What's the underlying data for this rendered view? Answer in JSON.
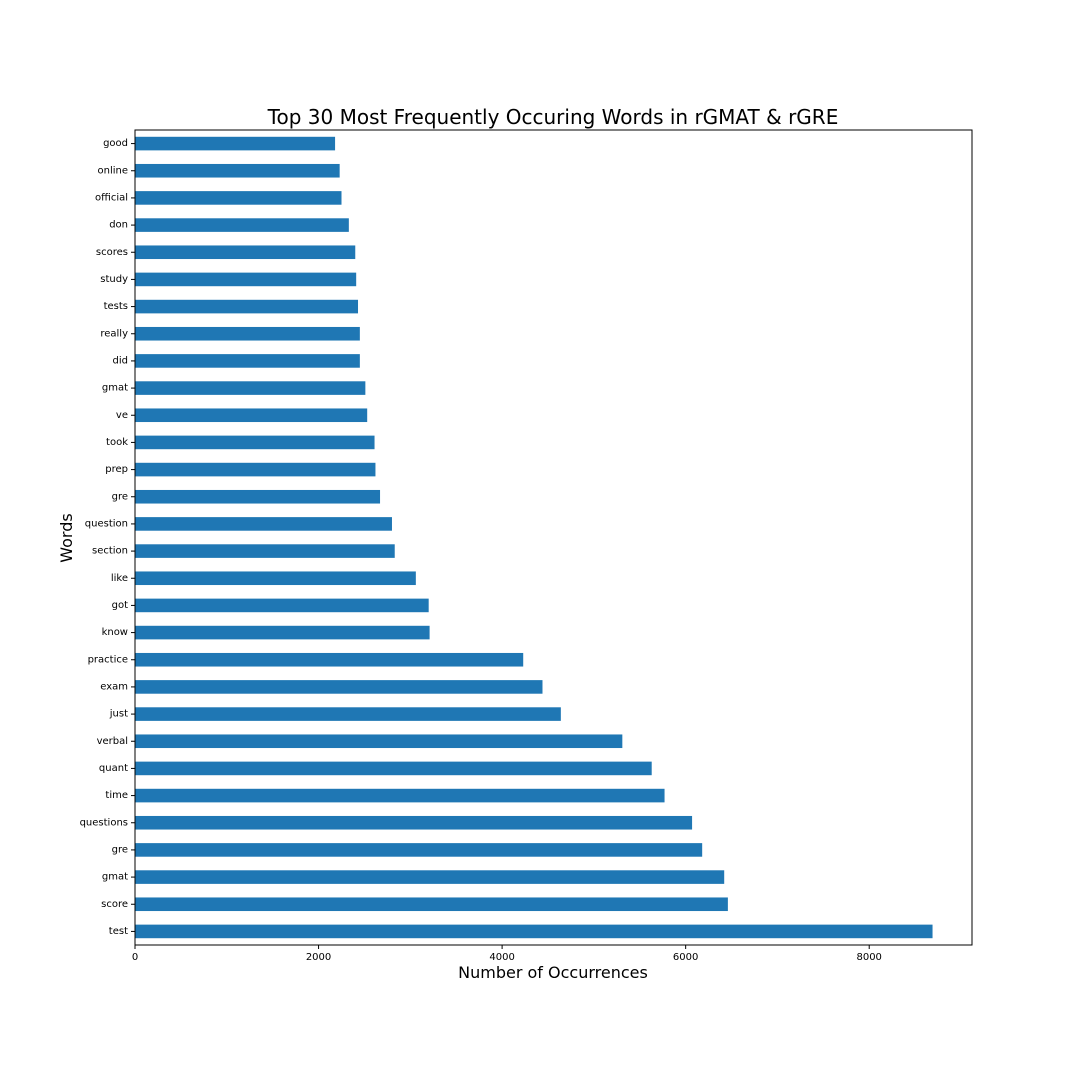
{
  "chart_data": {
    "type": "bar",
    "orientation": "horizontal",
    "title": "Top 30 Most Frequently Occuring Words in rGMAT & rGRE",
    "xlabel": "Number of Occurrences",
    "ylabel": "Words",
    "bar_color": "#1f77b4",
    "grid": false,
    "xlim": [
      0,
      9120
    ],
    "xticks": [
      0,
      2000,
      4000,
      6000,
      8000
    ],
    "categories": [
      "test",
      "score",
      "gmat",
      "gre",
      "questions",
      "time",
      "quant",
      "verbal",
      "just",
      "exam",
      "practice",
      "know",
      "got",
      "like",
      "section",
      "question",
      "gre",
      "prep",
      "took",
      "ve",
      "gmat",
      "did",
      "really",
      "tests",
      "study",
      "scores",
      "don",
      "official",
      "online",
      "good"
    ],
    "values": [
      8690,
      6460,
      6420,
      6180,
      6070,
      5770,
      5630,
      5310,
      4640,
      4440,
      4230,
      3210,
      3200,
      3060,
      2830,
      2800,
      2670,
      2620,
      2610,
      2530,
      2510,
      2450,
      2450,
      2430,
      2410,
      2400,
      2330,
      2250,
      2230,
      2180
    ]
  }
}
